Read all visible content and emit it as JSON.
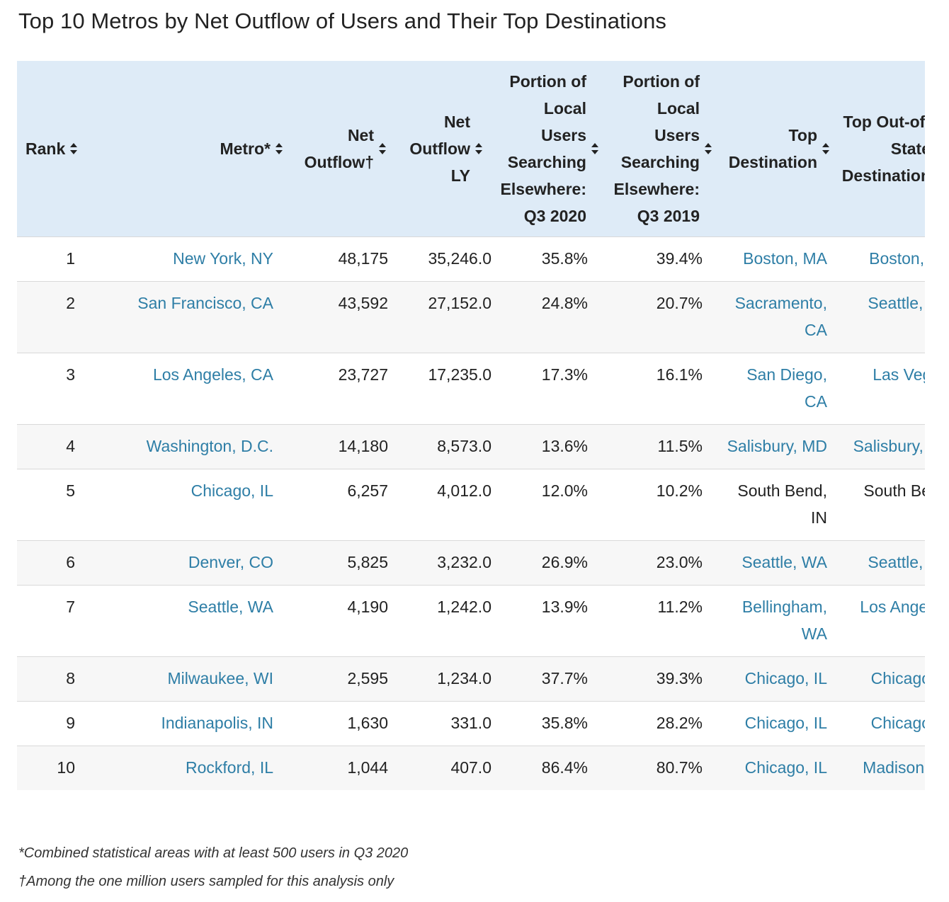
{
  "title": "Top 10 Metros by Net Outflow of Users and Their Top Destinations",
  "table": {
    "headers": [
      {
        "label": "Rank"
      },
      {
        "label": "Metro*"
      },
      {
        "label": "Net Outflow†"
      },
      {
        "label": "Net Outflow LY"
      },
      {
        "label": "Portion of Local Users Searching Elsewhere: Q3 2020"
      },
      {
        "label": "Portion of Local Users Searching Elsewhere: Q3 2019"
      },
      {
        "label": "Top Destination"
      },
      {
        "label": "Top Out-of-State Destination"
      }
    ],
    "rows": [
      {
        "rank": "1",
        "metro": "New York, NY",
        "net_outflow": "48,175",
        "net_outflow_ly": "35,246.0",
        "portion_2020": "35.8%",
        "portion_2019": "39.4%",
        "top_destination": "Boston, MA",
        "top_oos_destination": "Boston, MA"
      },
      {
        "rank": "2",
        "metro": "San Francisco, CA",
        "net_outflow": "43,592",
        "net_outflow_ly": "27,152.0",
        "portion_2020": "24.8%",
        "portion_2019": "20.7%",
        "top_destination": "Sacramento, CA",
        "top_oos_destination": "Seattle, WA"
      },
      {
        "rank": "3",
        "metro": "Los Angeles, CA",
        "net_outflow": "23,727",
        "net_outflow_ly": "17,235.0",
        "portion_2020": "17.3%",
        "portion_2019": "16.1%",
        "top_destination": "San Diego, CA",
        "top_oos_destination": "Las Vegas, NV"
      },
      {
        "rank": "4",
        "metro": "Washington, D.C.",
        "net_outflow": "14,180",
        "net_outflow_ly": "8,573.0",
        "portion_2020": "13.6%",
        "portion_2019": "11.5%",
        "top_destination": "Salisbury, MD",
        "top_oos_destination": "Salisbury, MD"
      },
      {
        "rank": "5",
        "metro": "Chicago, IL",
        "net_outflow": "6,257",
        "net_outflow_ly": "4,012.0",
        "portion_2020": "12.0%",
        "portion_2019": "10.2%",
        "top_destination": "South Bend, IN",
        "top_oos_destination": "South Bend, IN"
      },
      {
        "rank": "6",
        "metro": "Denver, CO",
        "net_outflow": "5,825",
        "net_outflow_ly": "3,232.0",
        "portion_2020": "26.9%",
        "portion_2019": "23.0%",
        "top_destination": "Seattle, WA",
        "top_oos_destination": "Seattle, WA"
      },
      {
        "rank": "7",
        "metro": "Seattle, WA",
        "net_outflow": "4,190",
        "net_outflow_ly": "1,242.0",
        "portion_2020": "13.9%",
        "portion_2019": "11.2%",
        "top_destination": "Bellingham, WA",
        "top_oos_destination": "Los Angeles, CA"
      },
      {
        "rank": "8",
        "metro": "Milwaukee, WI",
        "net_outflow": "2,595",
        "net_outflow_ly": "1,234.0",
        "portion_2020": "37.7%",
        "portion_2019": "39.3%",
        "top_destination": "Chicago, IL",
        "top_oos_destination": "Chicago, IL"
      },
      {
        "rank": "9",
        "metro": "Indianapolis, IN",
        "net_outflow": "1,630",
        "net_outflow_ly": "331.0",
        "portion_2020": "35.8%",
        "portion_2019": "28.2%",
        "top_destination": "Chicago, IL",
        "top_oos_destination": "Chicago, IL"
      },
      {
        "rank": "10",
        "metro": "Rockford, IL",
        "net_outflow": "1,044",
        "net_outflow_ly": "407.0",
        "portion_2020": "86.4%",
        "portion_2019": "80.7%",
        "top_destination": "Chicago, IL",
        "top_oos_destination": "Madison, WI"
      }
    ]
  },
  "footnotes": {
    "metro_note": "*Combined statistical areas with at least 500 users in Q3 2020",
    "outflow_note": "†Among the one million users sampled for this analysis only"
  },
  "colors": {
    "header_bg": "#deebf7",
    "link": "#2e7ea6",
    "stripe": "#f7f7f7",
    "text": "#222222"
  },
  "icons": {
    "sort": "sort-updown-icon"
  }
}
